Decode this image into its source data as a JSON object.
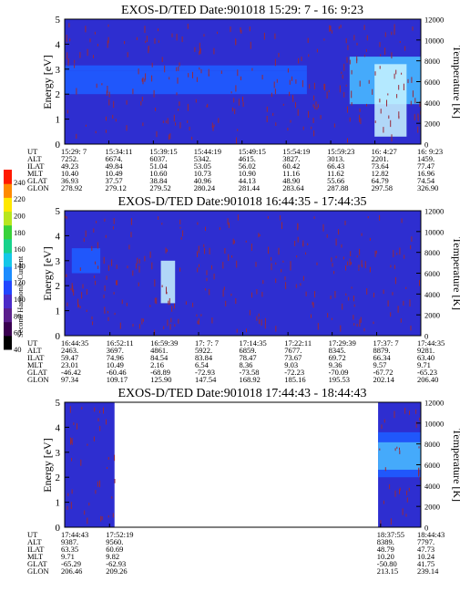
{
  "colors": {
    "background": "#2e2ed0",
    "band_blue": "#1f5cff",
    "band_cyan": "#48b8ff",
    "band_hot": "#c8f4ff",
    "noise": "#9a2a3a",
    "gap": "#ffffff"
  },
  "colorbar": {
    "label": "Second Harmonic Current",
    "ticks": [
      "40",
      "60",
      "80",
      "100",
      "120",
      "140",
      "160",
      "180",
      "200",
      "220",
      "240"
    ],
    "colors": [
      "#000000",
      "#3a0050",
      "#5a1e8c",
      "#4b2ac8",
      "#2146ff",
      "#1c8cff",
      "#15c7e8",
      "#18d28c",
      "#38d23a",
      "#b8e61e",
      "#ffe800",
      "#ff8a00",
      "#ff1a00"
    ]
  },
  "row_labels": [
    "UT",
    "ALT",
    "ILAT",
    "MLT",
    "GLAT",
    "GLON"
  ],
  "chart_data": [
    {
      "type": "heatmap",
      "title": "EXOS-D/TED   Date:901018  15:29: 7 - 16: 9:23",
      "ylabel": "Energy [eV]",
      "y2label": "Temperature [K]",
      "ylim": [
        0,
        5
      ],
      "y2lim": [
        0,
        12000
      ],
      "yticks": [
        "0",
        "1",
        "2",
        "3",
        "4",
        "5"
      ],
      "y2ticks": [
        "0",
        "2000",
        "4000",
        "6000",
        "8000",
        "10000",
        "12000"
      ],
      "data_span": [
        [
          0,
          1
        ]
      ],
      "ephemeris": [
        [
          "15:29: 7",
          "7252.",
          "49.23",
          "10.40",
          "36.93",
          "278.92"
        ],
        [
          "15:34:11",
          "6674.",
          "49.84",
          "10.49",
          "37.57",
          "279.12"
        ],
        [
          "15:39:15",
          "6037.",
          "51.04",
          "10.60",
          "38.84",
          "279.52"
        ],
        [
          "15:44:19",
          "5342.",
          "53.05",
          "10.73",
          "40.96",
          "280.24"
        ],
        [
          "15:49:15",
          "4615.",
          "56.02",
          "10.90",
          "44.13",
          "281.44"
        ],
        [
          "15:54:19",
          "3827.",
          "60.42",
          "11.16",
          "48.90",
          "283.64"
        ],
        [
          "15:59:23",
          "3013.",
          "66.43",
          "11.62",
          "55.66",
          "287.88"
        ],
        [
          "16: 4:27",
          "2201.",
          "73.64",
          "12.82",
          "64.79",
          "297.58"
        ],
        [
          "16: 9:23",
          "1459.",
          "77.47",
          "16.96",
          "74.54",
          "326.90"
        ]
      ],
      "ephemeris_pos": [
        0.0,
        0.124,
        0.249,
        0.373,
        0.498,
        0.622,
        0.747,
        0.871,
        1.0
      ],
      "bands": [
        {
          "t": [
            0.0,
            0.68
          ],
          "e": [
            2.95,
            3.15
          ],
          "level": "blue"
        },
        {
          "t": [
            0.0,
            0.68
          ],
          "e": [
            2.0,
            2.95
          ],
          "level": "blue"
        },
        {
          "t": [
            0.8,
            1.0
          ],
          "e": [
            1.6,
            3.5
          ],
          "level": "cyan"
        },
        {
          "t": [
            0.87,
            0.96
          ],
          "e": [
            0.3,
            3.2
          ],
          "level": "hot"
        }
      ]
    },
    {
      "type": "heatmap",
      "title": "EXOS-D/TED   Date:901018  16:44:35 - 17:44:35",
      "ylabel": "Energy [eV]",
      "y2label": "Temperature [K]",
      "ylim": [
        0,
        5
      ],
      "y2lim": [
        0,
        12000
      ],
      "yticks": [
        "0",
        "1",
        "2",
        "3",
        "4",
        "5"
      ],
      "y2ticks": [
        "0",
        "2000",
        "4000",
        "6000",
        "8000",
        "10000",
        "12000"
      ],
      "data_span": [
        [
          0,
          1
        ]
      ],
      "ephemeris": [
        [
          "16:44:35",
          "2463.",
          "59.47",
          "23.01",
          "-46.42",
          "97.34"
        ],
        [
          "16:52:11",
          "3697.",
          "74.96",
          "10.49",
          "-60.46",
          "109.17"
        ],
        [
          "16:59:39",
          "4861.",
          "84.54",
          "2.16",
          "-68.89",
          "125.90"
        ],
        [
          "17: 7: 7",
          "5922.",
          "83.84",
          "6.54",
          "-72.93",
          "147.54"
        ],
        [
          "17:14:35",
          "6859.",
          "78.47",
          "8.36",
          "-73.58",
          "168.92"
        ],
        [
          "17:22:11",
          "7677.",
          "73.67",
          "9.03",
          "-72.23",
          "185.16"
        ],
        [
          "17:29:39",
          "8345.",
          "69.72",
          "9.36",
          "-70.09",
          "195.53"
        ],
        [
          "17:37: 7",
          "8879.",
          "66.34",
          "9.57",
          "-67.72",
          "202.14"
        ],
        [
          "17:44:35",
          "9281.",
          "63.40",
          "9.71",
          "-65.23",
          "206.40"
        ]
      ],
      "ephemeris_pos": [
        0.0,
        0.127,
        0.251,
        0.376,
        0.5,
        0.627,
        0.751,
        0.876,
        1.0
      ],
      "bands": [
        {
          "t": [
            0.02,
            0.1
          ],
          "e": [
            2.5,
            3.5
          ],
          "level": "blue"
        },
        {
          "t": [
            0.27,
            0.31
          ],
          "e": [
            1.3,
            3.0
          ],
          "level": "hot"
        }
      ]
    },
    {
      "type": "heatmap",
      "title": "EXOS-D/TED   Date:901018  17:44:43 - 18:44:43",
      "ylabel": "Energy [eV]",
      "y2label": "Temperature [K]",
      "ylim": [
        0,
        5
      ],
      "y2lim": [
        0,
        12000
      ],
      "yticks": [
        "0",
        "1",
        "2",
        "3",
        "4",
        "5"
      ],
      "y2ticks": [
        "0",
        "2000",
        "4000",
        "6000",
        "8000",
        "10000",
        "12000"
      ],
      "data_span": [
        [
          0,
          0.14
        ],
        [
          0.88,
          1
        ]
      ],
      "ephemeris": [
        [
          "17:44:43",
          "9387.",
          "63.35",
          "9.71",
          "-65.29",
          "206.46"
        ],
        [
          "17:52:19",
          "9560.",
          "60.69",
          "9.82",
          "-62.93",
          "209.26"
        ],
        [
          "18:37:55",
          "8389.",
          "48.79",
          "10.20",
          "-50.80",
          "213.15"
        ],
        [
          "18:44:43",
          "7797.",
          "47.73",
          "10.24",
          "41.75",
          "239.14"
        ]
      ],
      "ephemeris_pos": [
        0.0,
        0.126,
        0.887,
        1.0
      ],
      "bands": [
        {
          "t": [
            0.88,
            1.0
          ],
          "e": [
            3.4,
            3.8
          ],
          "level": "blue"
        },
        {
          "t": [
            0.88,
            1.0
          ],
          "e": [
            2.3,
            3.4
          ],
          "level": "cyan"
        },
        {
          "t": [
            0.88,
            1.0
          ],
          "e": [
            2.0,
            2.3
          ],
          "level": "blue"
        }
      ]
    }
  ]
}
